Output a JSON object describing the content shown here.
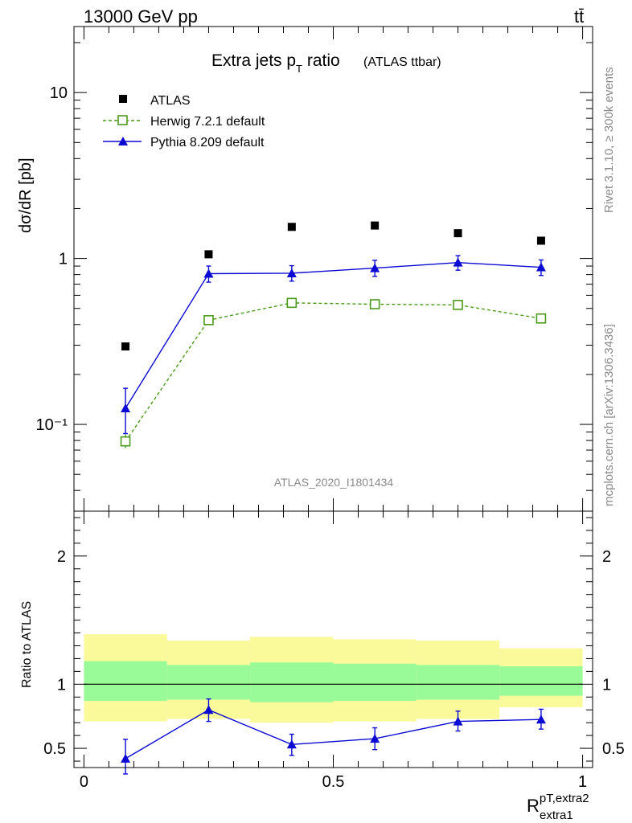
{
  "header": {
    "energy": "13000 GeV pp",
    "process": "tt̄"
  },
  "side_labels": {
    "rivet": "Rivet 3.1.10, ≥ 300k events",
    "source": "mcplots.cern.ch [arXiv:1306.3436]"
  },
  "chart_data": [
    {
      "type": "scatter",
      "title_main": "Extra jets p",
      "title_sub": "T",
      "title_tail": " ratio",
      "title_paren": "(ATLAS ttbar)",
      "watermark": "ATLAS_2020_I1801434",
      "ylabel": "dσ/dR [pb]",
      "yscale": "log",
      "ylim": [
        0.03,
        25
      ],
      "xlim": [
        -0.02,
        1.02
      ],
      "ytick_labels": [
        "10⁻¹",
        "1",
        "10"
      ],
      "legend_placement": "top-left",
      "x": [
        0.0833,
        0.25,
        0.4167,
        0.5833,
        0.75,
        0.9167
      ],
      "series": [
        {
          "name": "ATLAS",
          "marker": "filled-square",
          "color": "#000000",
          "values": [
            0.295,
            1.06,
            1.55,
            1.58,
            1.42,
            1.28
          ]
        },
        {
          "name": "Herwig 7.2.1 default",
          "marker": "open-square",
          "line": "dashed",
          "color": "#4b9a1a",
          "values": [
            0.079,
            0.425,
            0.54,
            0.53,
            0.525,
            0.435
          ],
          "err_low": [
            0.072,
            0.41,
            0.525,
            0.515,
            0.51,
            0.42
          ],
          "err_high": [
            0.087,
            0.44,
            0.555,
            0.545,
            0.54,
            0.45
          ]
        },
        {
          "name": "Pythia 8.209 default",
          "marker": "filled-triangle",
          "line": "solid",
          "color": "#0a0ad2",
          "values": [
            0.125,
            0.81,
            0.815,
            0.875,
            0.945,
            0.885
          ],
          "err_low": [
            0.088,
            0.72,
            0.73,
            0.78,
            0.85,
            0.79
          ],
          "err_high": [
            0.165,
            0.9,
            0.905,
            0.975,
            1.04,
            0.98
          ]
        }
      ]
    },
    {
      "type": "scatter",
      "ylabel": "Ratio to ATLAS",
      "xlabel_main": "R",
      "xlabel_sup": "pT,extra2",
      "xlabel_sub": "extra1",
      "ylim": [
        0.35,
        2.35
      ],
      "xlim": [
        -0.02,
        1.02
      ],
      "xtick_labels": [
        "0",
        "0.5",
        "1"
      ],
      "ytick_labels": [
        "0.5",
        "1",
        "2"
      ],
      "bins": [
        [
          0.0,
          0.1667
        ],
        [
          0.1667,
          0.3333
        ],
        [
          0.3333,
          0.5
        ],
        [
          0.5,
          0.6667
        ],
        [
          0.6667,
          0.8333
        ],
        [
          0.8333,
          1.0
        ]
      ],
      "band_inner": [
        [
          0.87,
          1.18
        ],
        [
          0.88,
          1.15
        ],
        [
          0.86,
          1.17
        ],
        [
          0.87,
          1.16
        ],
        [
          0.88,
          1.15
        ],
        [
          0.91,
          1.14
        ]
      ],
      "band_outer": [
        [
          0.71,
          1.39
        ],
        [
          0.73,
          1.34
        ],
        [
          0.7,
          1.37
        ],
        [
          0.71,
          1.35
        ],
        [
          0.73,
          1.34
        ],
        [
          0.82,
          1.28
        ]
      ],
      "series": [
        {
          "name": "Pythia 8.209 default",
          "color": "#0a0ad2",
          "x": [
            0.0833,
            0.25,
            0.4167,
            0.5833,
            0.75,
            0.9167
          ],
          "values": [
            0.42,
            0.8,
            0.53,
            0.575,
            0.71,
            0.725
          ],
          "err_low": [
            0.3,
            0.71,
            0.445,
            0.49,
            0.635,
            0.65
          ],
          "err_high": [
            0.57,
            0.885,
            0.61,
            0.66,
            0.79,
            0.805
          ]
        }
      ],
      "colors": {
        "band_inner": "#98fb98",
        "band_outer": "#fafa9a",
        "reference": "#000000"
      }
    }
  ]
}
